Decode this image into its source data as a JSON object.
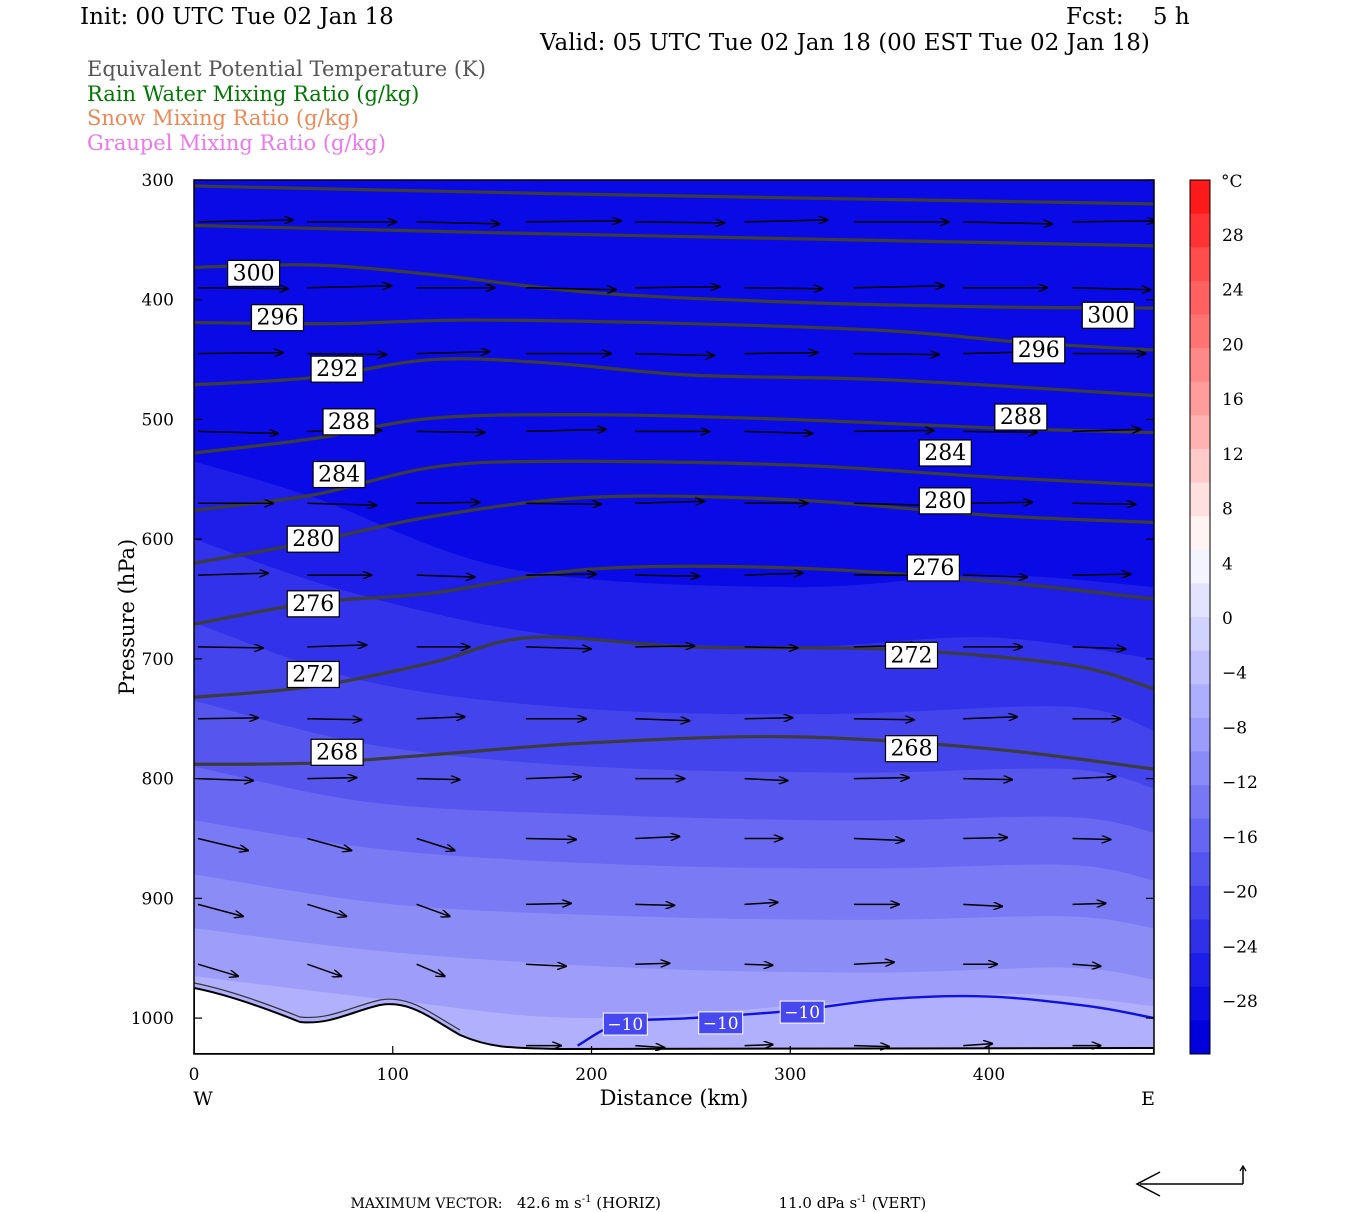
{
  "header": {
    "init": "Init: 00 UTC Tue 02 Jan 18",
    "fcst": "Fcst:    5 h",
    "valid": "Valid: 05 UTC Tue 02 Jan 18 (00 EST Tue 02 Jan 18)"
  },
  "legend": [
    {
      "label": "Equivalent Potential Temperature (K)",
      "color": "#555555"
    },
    {
      "label": "Rain Water Mixing Ratio (g/kg)",
      "color": "#007700"
    },
    {
      "label": "Snow Mixing Ratio (g/kg)",
      "color": "#ee8855"
    },
    {
      "label": "Graupel Mixing Ratio (g/kg)",
      "color": "#ee77ee"
    }
  ],
  "footer": {
    "prefix": "MAXIMUM VECTOR:",
    "horiz_value": "42.6",
    "horiz_unit_base": "m s",
    "horiz_unit_exp": "-1",
    "horiz_label": "(HORIZ)",
    "vert_value": "11.0",
    "vert_unit_base": "dPa s",
    "vert_unit_exp": "-1",
    "vert_label": "(VERT)"
  },
  "chart_data": {
    "type": "contour",
    "xlabel": "Distance (km)",
    "ylabel": "Pressure (hPa)",
    "xlim": [
      0,
      483
    ],
    "ylim": [
      1030,
      300
    ],
    "xticks": [
      0,
      100,
      200,
      300,
      400
    ],
    "yticks": [
      300,
      400,
      500,
      600,
      700,
      800,
      900,
      1000
    ],
    "x_end_labels": {
      "left": "W",
      "right": "E"
    },
    "colorbar": {
      "unit": "°C",
      "tick_labels": [
        "28",
        "24",
        "20",
        "16",
        "12",
        "8",
        "4",
        "0",
        "−4",
        "−8",
        "−12",
        "−16",
        "−20",
        "−24",
        "−28"
      ],
      "tick_values": [
        28,
        24,
        20,
        16,
        12,
        8,
        4,
        0,
        -4,
        -8,
        -12,
        -16,
        -20,
        -24,
        -28
      ],
      "colors": [
        "#ff1a1a",
        "#ff3333",
        "#ff4d4d",
        "#ff6060",
        "#ff7373",
        "#ff8888",
        "#ff9d9d",
        "#ffb2b2",
        "#ffcaca",
        "#ffe0e0",
        "#fff3f3",
        "#f4f4ff",
        "#e3e3ff",
        "#d2d2ff",
        "#c0c0ff",
        "#aeaefe",
        "#9c9cfb",
        "#8a8af8",
        "#7878f5",
        "#6666f2",
        "#5454ef",
        "#4242ec",
        "#3030e9",
        "#1e1ee6",
        "#0c0ce3",
        "#0000dd"
      ]
    },
    "theta_e_contours": [
      {
        "label": "300",
        "label_positions": [
          [
            30,
            378
          ],
          [
            460,
            413
          ]
        ],
        "points": [
          [
            0,
            373
          ],
          [
            60,
            371
          ],
          [
            120,
            379
          ],
          [
            200,
            394
          ],
          [
            300,
            402
          ],
          [
            400,
            406
          ],
          [
            483,
            407
          ]
        ]
      },
      {
        "label": "296",
        "label_positions": [
          [
            42,
            415
          ],
          [
            425,
            442
          ]
        ],
        "points": [
          [
            0,
            419
          ],
          [
            70,
            420
          ],
          [
            140,
            417
          ],
          [
            250,
            420
          ],
          [
            350,
            426
          ],
          [
            420,
            436
          ],
          [
            483,
            442
          ]
        ]
      },
      {
        "label": "292",
        "label_positions": [
          [
            72,
            458
          ]
        ],
        "points": [
          [
            0,
            471
          ],
          [
            60,
            465
          ],
          [
            120,
            450
          ],
          [
            180,
            453
          ],
          [
            250,
            463
          ],
          [
            350,
            467
          ],
          [
            483,
            480
          ]
        ]
      },
      {
        "label": "288",
        "label_positions": [
          [
            78,
            502
          ],
          [
            416,
            498
          ]
        ],
        "points": [
          [
            0,
            528
          ],
          [
            60,
            516
          ],
          [
            120,
            499
          ],
          [
            200,
            496
          ],
          [
            300,
            500
          ],
          [
            400,
            507
          ],
          [
            483,
            511
          ]
        ]
      },
      {
        "label": "284",
        "label_positions": [
          [
            73,
            546
          ],
          [
            378,
            528
          ]
        ],
        "points": [
          [
            0,
            576
          ],
          [
            60,
            563
          ],
          [
            120,
            540
          ],
          [
            180,
            535
          ],
          [
            300,
            538
          ],
          [
            400,
            548
          ],
          [
            483,
            555
          ]
        ]
      },
      {
        "label": "280",
        "label_positions": [
          [
            60,
            600
          ],
          [
            378,
            568
          ]
        ],
        "points": [
          [
            0,
            620
          ],
          [
            60,
            602
          ],
          [
            120,
            581
          ],
          [
            200,
            565
          ],
          [
            300,
            567
          ],
          [
            400,
            580
          ],
          [
            483,
            586
          ]
        ]
      },
      {
        "label": "276",
        "label_positions": [
          [
            60,
            654
          ],
          [
            372,
            624
          ]
        ],
        "points": [
          [
            0,
            671
          ],
          [
            60,
            653
          ],
          [
            120,
            645
          ],
          [
            200,
            625
          ],
          [
            300,
            624
          ],
          [
            400,
            635
          ],
          [
            483,
            650
          ]
        ]
      },
      {
        "label": "272",
        "label_positions": [
          [
            60,
            713
          ],
          [
            361,
            697
          ]
        ],
        "points": [
          [
            0,
            732
          ],
          [
            60,
            723
          ],
          [
            120,
            703
          ],
          [
            170,
            682
          ],
          [
            250,
            690
          ],
          [
            350,
            692
          ],
          [
            440,
            705
          ],
          [
            483,
            725
          ]
        ]
      },
      {
        "label": "268",
        "label_positions": [
          [
            72,
            778
          ],
          [
            361,
            775
          ]
        ],
        "points": [
          [
            0,
            788
          ],
          [
            60,
            787
          ],
          [
            120,
            780
          ],
          [
            200,
            770
          ],
          [
            300,
            765
          ],
          [
            400,
            775
          ],
          [
            483,
            792
          ]
        ]
      }
    ],
    "temperature_contours": [
      {
        "label": "−10",
        "label_positions": [
          [
            217,
            1005
          ],
          [
            265,
            1004
          ],
          [
            306,
            995
          ]
        ],
        "points": [
          [
            193,
            1023
          ],
          [
            215,
            1004
          ],
          [
            250,
            1000
          ],
          [
            300,
            994
          ],
          [
            350,
            984
          ],
          [
            400,
            982
          ],
          [
            450,
            990
          ],
          [
            483,
            1000
          ]
        ]
      }
    ]
  }
}
